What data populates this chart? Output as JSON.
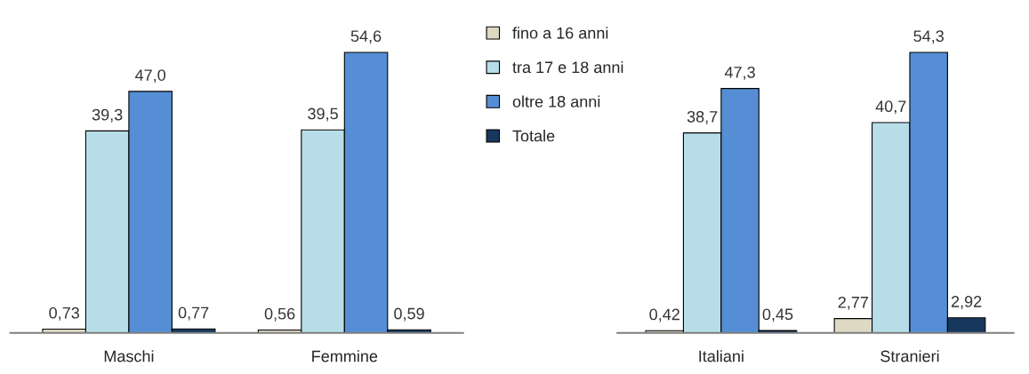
{
  "chart_data": [
    {
      "type": "bar",
      "categories": [
        "Maschi",
        "Femmine"
      ],
      "legend": "right",
      "tick_labels": "x",
      "grid": false,
      "series": [
        {
          "name": "fino a 16 anni",
          "color": "#ddd9c3",
          "values": [
            0.73,
            0.56
          ],
          "value_labels": [
            "0,73",
            "0,56"
          ]
        },
        {
          "name": "tra 17 e 18 anni",
          "color": "#b7dee8",
          "values": [
            39.3,
            39.5
          ],
          "value_labels": [
            "39,3",
            "39,5"
          ]
        },
        {
          "name": "oltre 18 anni",
          "color": "#558ed5",
          "values": [
            47.0,
            54.6
          ],
          "value_labels": [
            "47,0",
            "54,6"
          ]
        },
        {
          "name": "Totale",
          "color": "#17375e",
          "values": [
            0.77,
            0.59
          ],
          "value_labels": [
            "0,77",
            "0,59"
          ]
        }
      ]
    },
    {
      "type": "bar",
      "categories": [
        "Italiani",
        "Stranieri"
      ],
      "tick_labels": "x",
      "grid": false,
      "series": [
        {
          "color": "#ddd9c3",
          "values": [
            0.42,
            2.77
          ],
          "value_labels": [
            "0,42",
            "2,77"
          ]
        },
        {
          "color": "#b7dee8",
          "values": [
            38.7,
            40.7
          ],
          "value_labels": [
            "38,7",
            "40,7"
          ]
        },
        {
          "color": "#558ed5",
          "values": [
            47.3,
            54.3
          ],
          "value_labels": [
            "47,3",
            "54,3"
          ]
        },
        {
          "color": "#17375e",
          "values": [
            0.45,
            2.92
          ],
          "value_labels": [
            "0,45",
            "2,92"
          ]
        }
      ]
    }
  ]
}
